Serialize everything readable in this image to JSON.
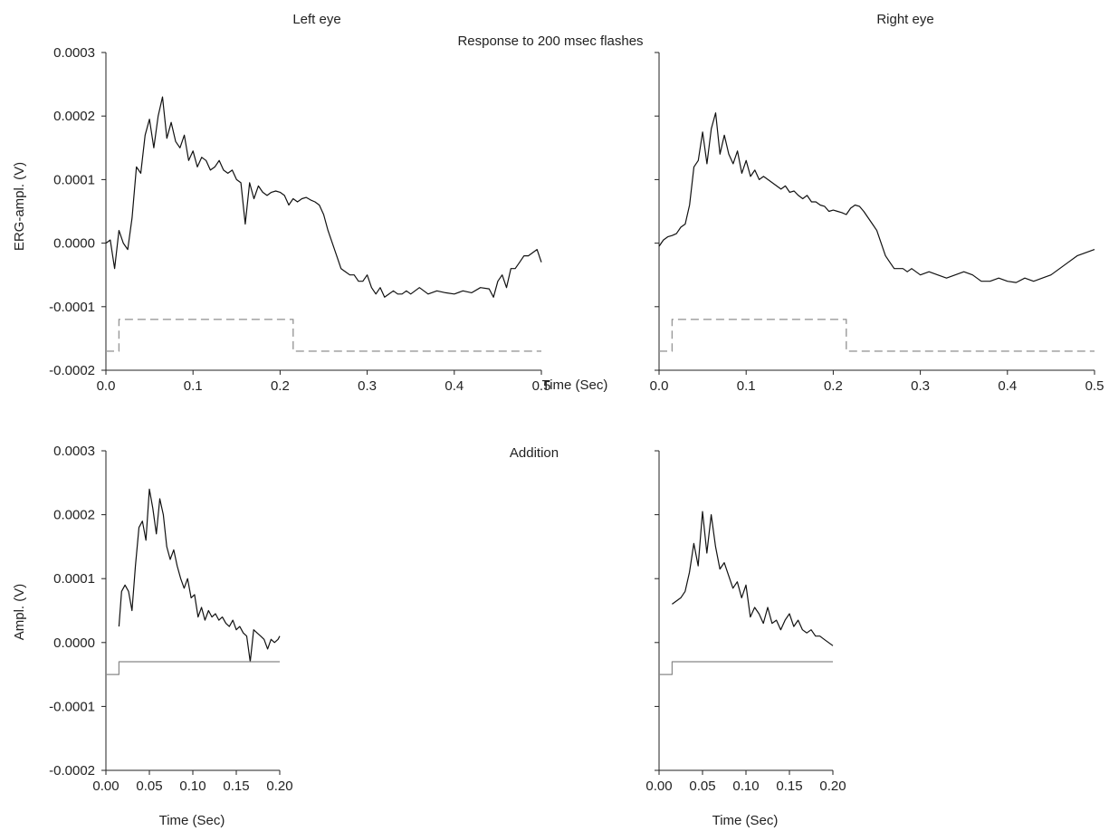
{
  "figure": {
    "title": "Response to 200 msec flashes",
    "left_title": "Left eye",
    "right_title": "Right eye",
    "bottom_title": "Addition",
    "top_xlabel": "Time (Sec)",
    "top_ylabel": "ERG-ampl. (V)",
    "bottom_xlabel": "Time (Sec)",
    "bottom_ylabel": "Ampl. (V)"
  },
  "chart_data": [
    {
      "type": "line",
      "panel": "left-eye",
      "title": "Left eye",
      "xlabel": "Time (Sec)",
      "ylabel": "ERG-ampl. (V)",
      "xlim": [
        0.0,
        0.5
      ],
      "ylim": [
        -0.0002,
        0.0003
      ],
      "xticks": [
        "0.0",
        "0.1",
        "0.2",
        "0.3",
        "0.4",
        "0.5"
      ],
      "yticks": [
        "-0.0002",
        "-0.0001",
        "0.0000",
        "0.0001",
        "0.0002",
        "0.0003"
      ],
      "series": [
        {
          "style": "solid",
          "x": [
            0.0,
            0.005,
            0.01,
            0.015,
            0.02,
            0.025,
            0.03,
            0.035,
            0.04,
            0.045,
            0.05,
            0.055,
            0.06,
            0.065,
            0.07,
            0.075,
            0.08,
            0.085,
            0.09,
            0.095,
            0.1,
            0.105,
            0.11,
            0.115,
            0.12,
            0.125,
            0.13,
            0.135,
            0.14,
            0.145,
            0.15,
            0.155,
            0.16,
            0.165,
            0.17,
            0.175,
            0.18,
            0.185,
            0.19,
            0.195,
            0.2,
            0.205,
            0.21,
            0.215,
            0.22,
            0.225,
            0.23,
            0.235,
            0.24,
            0.245,
            0.25,
            0.255,
            0.26,
            0.265,
            0.27,
            0.275,
            0.28,
            0.285,
            0.29,
            0.295,
            0.3,
            0.305,
            0.31,
            0.315,
            0.32,
            0.325,
            0.33,
            0.335,
            0.34,
            0.345,
            0.35,
            0.36,
            0.37,
            0.38,
            0.39,
            0.4,
            0.41,
            0.42,
            0.43,
            0.44,
            0.445,
            0.45,
            0.455,
            0.46,
            0.465,
            0.47,
            0.475,
            0.48,
            0.485,
            0.49,
            0.495,
            0.5
          ],
          "y": [
            0.0,
            5e-06,
            -4e-05,
            2e-05,
            0.0,
            -1e-05,
            4e-05,
            0.00012,
            0.00011,
            0.00017,
            0.000195,
            0.00015,
            0.0002,
            0.00023,
            0.000165,
            0.00019,
            0.00016,
            0.00015,
            0.00017,
            0.00013,
            0.000145,
            0.00012,
            0.000135,
            0.00013,
            0.000115,
            0.00012,
            0.00013,
            0.000115,
            0.00011,
            0.000115,
            0.0001,
            9.5e-05,
            3e-05,
            9.5e-05,
            7e-05,
            9e-05,
            8e-05,
            7.5e-05,
            8e-05,
            8.2e-05,
            8e-05,
            7.5e-05,
            6e-05,
            7e-05,
            6.5e-05,
            7e-05,
            7.2e-05,
            6.8e-05,
            6.5e-05,
            6e-05,
            4.5e-05,
            2e-05,
            0.0,
            -2e-05,
            -4e-05,
            -4.5e-05,
            -5e-05,
            -5e-05,
            -6e-05,
            -6e-05,
            -5e-05,
            -7e-05,
            -8e-05,
            -7e-05,
            -8.5e-05,
            -8e-05,
            -7.5e-05,
            -8e-05,
            -8e-05,
            -7.5e-05,
            -8e-05,
            -7e-05,
            -8e-05,
            -7.5e-05,
            -7.8e-05,
            -8e-05,
            -7.5e-05,
            -7.8e-05,
            -7e-05,
            -7.2e-05,
            -8.5e-05,
            -6e-05,
            -5e-05,
            -7e-05,
            -4e-05,
            -4e-05,
            -3e-05,
            -2e-05,
            -2e-05,
            -1.5e-05,
            -1e-05,
            -3e-05
          ]
        },
        {
          "style": "dashed",
          "x": [
            0.0,
            0.015,
            0.015,
            0.215,
            0.215,
            0.5
          ],
          "y": [
            -0.00017,
            -0.00017,
            -0.00012,
            -0.00012,
            -0.00017,
            -0.00017
          ]
        }
      ]
    },
    {
      "type": "line",
      "panel": "right-eye",
      "title": "Right eye",
      "xlim": [
        0.0,
        0.5
      ],
      "ylim": [
        -0.0002,
        0.0003
      ],
      "xticks": [
        "0.0",
        "0.1",
        "0.2",
        "0.3",
        "0.4",
        "0.5"
      ],
      "series": [
        {
          "style": "solid",
          "x": [
            0.0,
            0.005,
            0.01,
            0.015,
            0.02,
            0.025,
            0.03,
            0.035,
            0.04,
            0.045,
            0.05,
            0.055,
            0.06,
            0.065,
            0.07,
            0.075,
            0.08,
            0.085,
            0.09,
            0.095,
            0.1,
            0.105,
            0.11,
            0.115,
            0.12,
            0.125,
            0.13,
            0.135,
            0.14,
            0.145,
            0.15,
            0.155,
            0.16,
            0.165,
            0.17,
            0.175,
            0.18,
            0.185,
            0.19,
            0.195,
            0.2,
            0.205,
            0.21,
            0.215,
            0.22,
            0.225,
            0.23,
            0.235,
            0.24,
            0.245,
            0.25,
            0.255,
            0.26,
            0.265,
            0.27,
            0.275,
            0.28,
            0.285,
            0.29,
            0.3,
            0.31,
            0.32,
            0.33,
            0.34,
            0.35,
            0.36,
            0.37,
            0.38,
            0.39,
            0.4,
            0.41,
            0.42,
            0.43,
            0.44,
            0.45,
            0.46,
            0.47,
            0.48,
            0.49,
            0.5
          ],
          "y": [
            -5e-06,
            5e-06,
            1e-05,
            1.2e-05,
            1.5e-05,
            2.5e-05,
            3e-05,
            6e-05,
            0.00012,
            0.00013,
            0.000175,
            0.000125,
            0.00018,
            0.000205,
            0.00014,
            0.00017,
            0.00014,
            0.000125,
            0.000145,
            0.00011,
            0.00013,
            0.000105,
            0.000115,
            0.0001,
            0.000105,
            0.0001,
            9.5e-05,
            9e-05,
            8.5e-05,
            9e-05,
            8e-05,
            8.2e-05,
            7.5e-05,
            7e-05,
            7.5e-05,
            6.5e-05,
            6.5e-05,
            6e-05,
            5.8e-05,
            5e-05,
            5.2e-05,
            5e-05,
            4.8e-05,
            4.5e-05,
            5.5e-05,
            6e-05,
            5.8e-05,
            5e-05,
            4e-05,
            3e-05,
            2e-05,
            0.0,
            -2e-05,
            -3e-05,
            -4e-05,
            -4e-05,
            -4e-05,
            -4.5e-05,
            -4e-05,
            -5e-05,
            -4.5e-05,
            -5e-05,
            -5.5e-05,
            -5e-05,
            -4.5e-05,
            -5e-05,
            -6e-05,
            -6e-05,
            -5.5e-05,
            -6e-05,
            -6.2e-05,
            -5.5e-05,
            -6e-05,
            -5.5e-05,
            -5e-05,
            -4e-05,
            -3e-05,
            -2e-05,
            -1.5e-05,
            -1e-05
          ]
        },
        {
          "style": "dashed",
          "x": [
            0.0,
            0.015,
            0.015,
            0.215,
            0.215,
            0.5
          ],
          "y": [
            -0.00017,
            -0.00017,
            -0.00012,
            -0.00012,
            -0.00017,
            -0.00017
          ]
        }
      ]
    },
    {
      "type": "line",
      "panel": "addition-left",
      "xlabel": "Time (Sec)",
      "ylabel": "Ampl. (V)",
      "xlim": [
        0.0,
        0.2
      ],
      "ylim": [
        -0.0002,
        0.0003
      ],
      "xticks": [
        "0.00",
        "0.05",
        "0.10",
        "0.15",
        "0.20"
      ],
      "yticks": [
        "-0.0002",
        "-0.0001",
        "0.0000",
        "0.0001",
        "0.0002",
        "0.0003"
      ],
      "series": [
        {
          "style": "solid",
          "x": [
            0.015,
            0.018,
            0.022,
            0.026,
            0.03,
            0.034,
            0.038,
            0.042,
            0.046,
            0.05,
            0.054,
            0.058,
            0.062,
            0.066,
            0.07,
            0.074,
            0.078,
            0.082,
            0.086,
            0.09,
            0.094,
            0.098,
            0.102,
            0.106,
            0.11,
            0.114,
            0.118,
            0.122,
            0.126,
            0.13,
            0.134,
            0.138,
            0.142,
            0.146,
            0.15,
            0.154,
            0.158,
            0.162,
            0.166,
            0.17,
            0.174,
            0.178,
            0.182,
            0.186,
            0.19,
            0.194,
            0.198,
            0.2
          ],
          "y": [
            2.5e-05,
            8e-05,
            9e-05,
            8e-05,
            5e-05,
            0.00012,
            0.00018,
            0.00019,
            0.00016,
            0.00024,
            0.00021,
            0.00017,
            0.000225,
            0.0002,
            0.00015,
            0.00013,
            0.000145,
            0.00012,
            0.0001,
            8.5e-05,
            0.0001,
            7e-05,
            7.5e-05,
            4e-05,
            5.5e-05,
            3.5e-05,
            5e-05,
            4e-05,
            4.5e-05,
            3.5e-05,
            4e-05,
            3e-05,
            2.5e-05,
            3.5e-05,
            2e-05,
            2.5e-05,
            1.5e-05,
            1e-05,
            -3e-05,
            2e-05,
            1.5e-05,
            1e-05,
            5e-06,
            -1e-05,
            5e-06,
            0.0,
            5e-06,
            1e-05
          ]
        },
        {
          "style": "step",
          "x": [
            0.0,
            0.015,
            0.015,
            0.2
          ],
          "y": [
            -5e-05,
            -5e-05,
            -3e-05,
            -3e-05
          ]
        }
      ]
    },
    {
      "type": "line",
      "panel": "addition-right",
      "xlim": [
        0.0,
        0.2
      ],
      "ylim": [
        -0.0002,
        0.0003
      ],
      "xticks": [
        "0.00",
        "0.05",
        "0.10",
        "0.15",
        "0.20"
      ],
      "series": [
        {
          "style": "solid",
          "x": [
            0.015,
            0.02,
            0.025,
            0.03,
            0.035,
            0.04,
            0.045,
            0.05,
            0.055,
            0.06,
            0.065,
            0.07,
            0.075,
            0.08,
            0.085,
            0.09,
            0.095,
            0.1,
            0.105,
            0.11,
            0.115,
            0.12,
            0.125,
            0.13,
            0.135,
            0.14,
            0.145,
            0.15,
            0.155,
            0.16,
            0.165,
            0.17,
            0.175,
            0.18,
            0.185,
            0.19,
            0.195,
            0.2
          ],
          "y": [
            6e-05,
            6.5e-05,
            7e-05,
            8e-05,
            0.00011,
            0.000155,
            0.00012,
            0.000205,
            0.00014,
            0.0002,
            0.00015,
            0.000115,
            0.000125,
            0.000105,
            8.5e-05,
            9.5e-05,
            7e-05,
            9e-05,
            4e-05,
            5.5e-05,
            4.5e-05,
            3e-05,
            5.5e-05,
            3e-05,
            3.5e-05,
            2e-05,
            3.5e-05,
            4.5e-05,
            2.5e-05,
            3.5e-05,
            2e-05,
            1.5e-05,
            2e-05,
            1e-05,
            1e-05,
            5e-06,
            0.0,
            -5e-06
          ]
        },
        {
          "style": "step",
          "x": [
            0.0,
            0.015,
            0.015,
            0.2
          ],
          "y": [
            -5e-05,
            -5e-05,
            -3e-05,
            -3e-05
          ]
        }
      ]
    }
  ]
}
